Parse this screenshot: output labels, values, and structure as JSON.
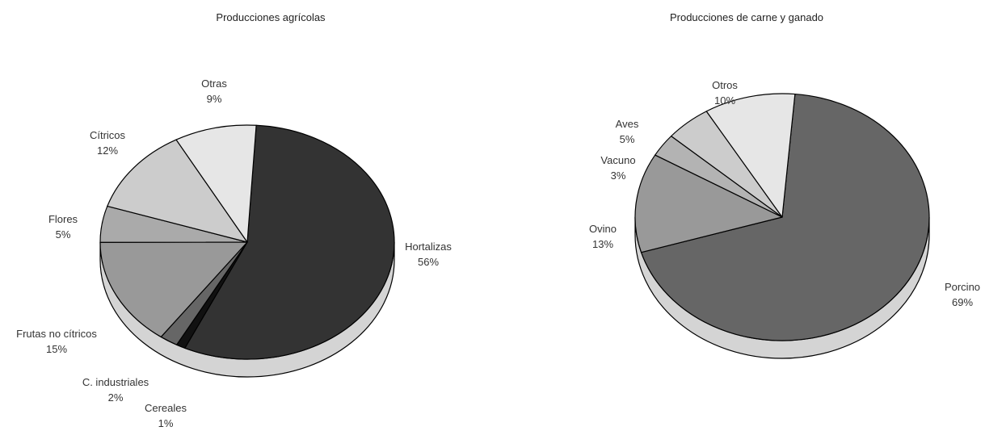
{
  "chart_data": [
    {
      "type": "pie",
      "title": "Producciones agrícolas",
      "slices": [
        {
          "label": "Hortalizas",
          "value": 56,
          "value_label": "56%",
          "color": "#333333"
        },
        {
          "label": "Cereales",
          "value": 1,
          "value_label": "1%",
          "color": "#111111"
        },
        {
          "label": "C. industriales",
          "value": 2,
          "value_label": "2%",
          "color": "#666666"
        },
        {
          "label": "Frutas no cítricos",
          "value": 15,
          "value_label": "15%",
          "color": "#999999"
        },
        {
          "label": "Flores",
          "value": 5,
          "value_label": "5%",
          "color": "#aaaaaa"
        },
        {
          "label": "Cítricos",
          "value": 12,
          "value_label": "12%",
          "color": "#cccccc"
        },
        {
          "label": "Otras",
          "value": 9,
          "value_label": "9%",
          "color": "#e6e6e6"
        }
      ]
    },
    {
      "type": "pie",
      "title": "Producciones de carne y ganado",
      "slices": [
        {
          "label": "Porcino",
          "value": 69,
          "value_label": "69%",
          "color": "#666666"
        },
        {
          "label": "Ovino",
          "value": 13,
          "value_label": "13%",
          "color": "#999999"
        },
        {
          "label": "Vacuno",
          "value": 3,
          "value_label": "3%",
          "color": "#b3b3b3"
        },
        {
          "label": "Aves",
          "value": 5,
          "value_label": "5%",
          "color": "#cccccc"
        },
        {
          "label": "Otros",
          "value": 10,
          "value_label": "10%",
          "color": "#e6e6e6"
        }
      ]
    }
  ]
}
